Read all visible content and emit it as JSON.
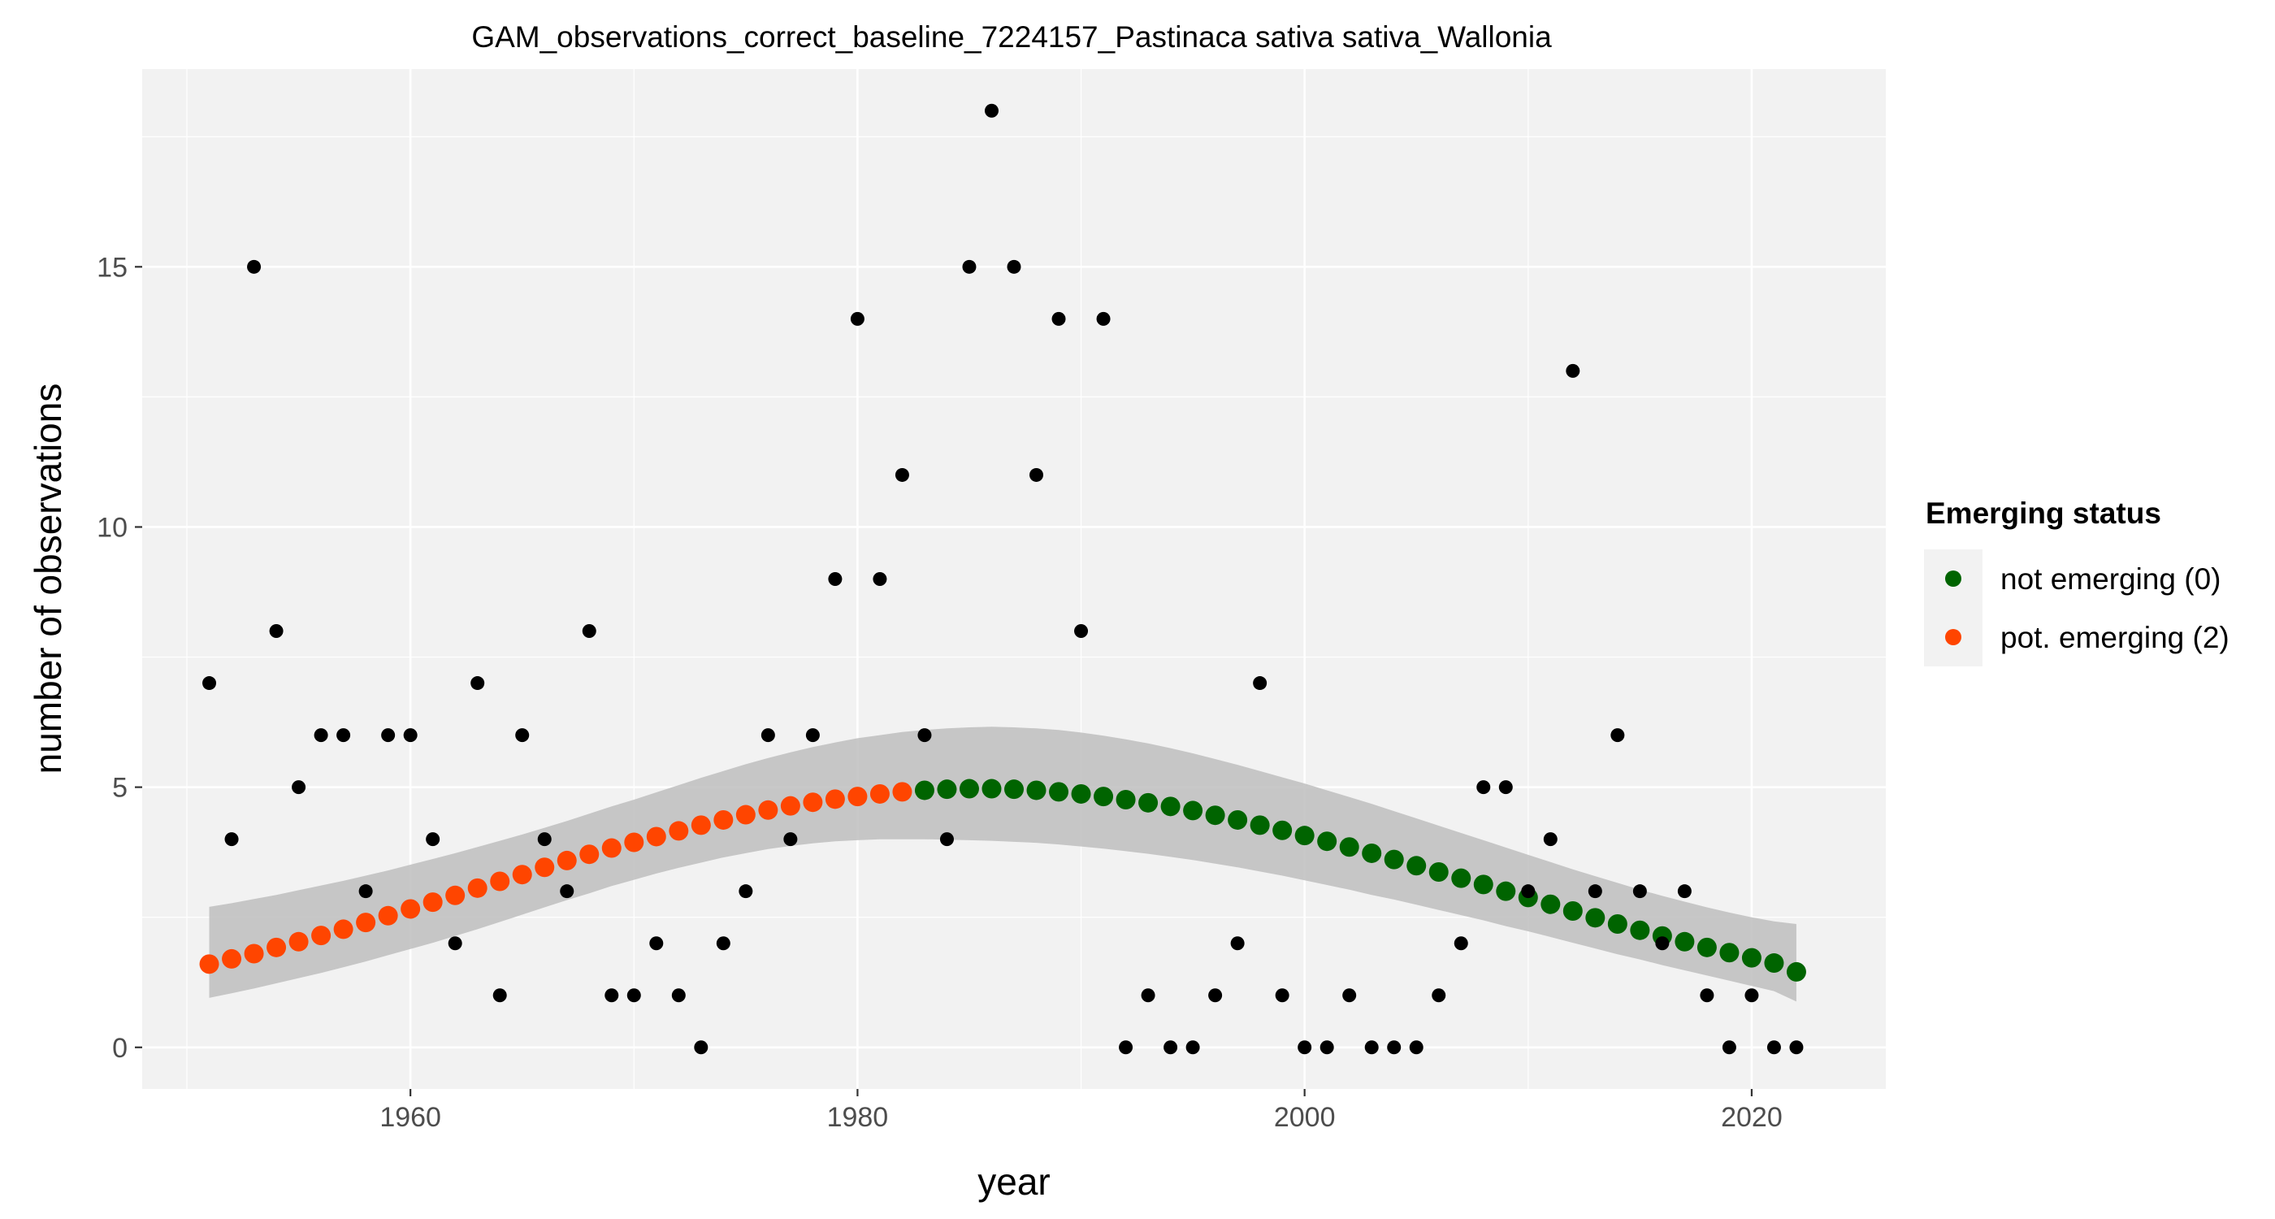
{
  "chart_data": {
    "type": "scatter",
    "title": "GAM_observations_correct_baseline_7224157_Pastinaca sativa sativa_Wallonia",
    "xlabel": "year",
    "ylabel": "number of observations",
    "xlim": [
      1948,
      2026
    ],
    "ylim": [
      -0.8,
      18.8
    ],
    "x_ticks": [
      1960,
      1980,
      2000,
      2020
    ],
    "y_ticks": [
      0,
      5,
      10,
      15
    ],
    "grid": true,
    "legend": {
      "title": "Emerging status",
      "position": "right",
      "items": [
        {
          "label": "not emerging (0)",
          "color": "#006400"
        },
        {
          "label": "pot. emerging (2)",
          "color": "#FF4500"
        }
      ]
    },
    "colors": {
      "panel_background": "#f2f2f2",
      "grid": "#ffffff",
      "observed_points": "#000000",
      "confidence_band": "#bebebe"
    },
    "observed": {
      "name": "",
      "x": [
        1951,
        1952,
        1953,
        1954,
        1955,
        1956,
        1957,
        1958,
        1959,
        1960,
        1961,
        1962,
        1963,
        1964,
        1965,
        1966,
        1967,
        1968,
        1969,
        1970,
        1971,
        1972,
        1973,
        1974,
        1975,
        1976,
        1977,
        1978,
        1979,
        1980,
        1981,
        1982,
        1983,
        1984,
        1985,
        1986,
        1987,
        1988,
        1989,
        1990,
        1991,
        1992,
        1993,
        1994,
        1995,
        1996,
        1997,
        1998,
        1999,
        2000,
        2001,
        2002,
        2003,
        2004,
        2005,
        2006,
        2007,
        2008,
        2009,
        2010,
        2011,
        2012,
        2013,
        2014,
        2015,
        2016,
        2017,
        2018,
        2019,
        2020,
        2021,
        2022
      ],
      "y": [
        7,
        4,
        15,
        8,
        5,
        6,
        6,
        3,
        6,
        6,
        4,
        2,
        7,
        1,
        6,
        4,
        3,
        8,
        1,
        1,
        2,
        1,
        0,
        2,
        3,
        6,
        4,
        6,
        9,
        14,
        9,
        11,
        6,
        4,
        15,
        18,
        15,
        11,
        14,
        8,
        14,
        0,
        1,
        0,
        0,
        1,
        2,
        7,
        1,
        0,
        0,
        1,
        0,
        0,
        0,
        1,
        2,
        5,
        5,
        3,
        4,
        13,
        3,
        6,
        3,
        2,
        3,
        1,
        0,
        1,
        0,
        0
      ]
    },
    "fitted": {
      "x": [
        1951,
        1952,
        1953,
        1954,
        1955,
        1956,
        1957,
        1958,
        1959,
        1960,
        1961,
        1962,
        1963,
        1964,
        1965,
        1966,
        1967,
        1968,
        1969,
        1970,
        1971,
        1972,
        1973,
        1974,
        1975,
        1976,
        1977,
        1978,
        1979,
        1980,
        1981,
        1982,
        1983,
        1984,
        1985,
        1986,
        1987,
        1988,
        1989,
        1990,
        1991,
        1992,
        1993,
        1994,
        1995,
        1996,
        1997,
        1998,
        1999,
        2000,
        2001,
        2002,
        2003,
        2004,
        2005,
        2006,
        2007,
        2008,
        2009,
        2010,
        2011,
        2012,
        2013,
        2014,
        2015,
        2016,
        2017,
        2018,
        2019,
        2020,
        2021,
        2022
      ],
      "y": [
        1.6,
        1.7,
        1.8,
        1.92,
        2.03,
        2.15,
        2.27,
        2.4,
        2.53,
        2.66,
        2.79,
        2.92,
        3.06,
        3.19,
        3.32,
        3.46,
        3.59,
        3.71,
        3.83,
        3.94,
        4.05,
        4.16,
        4.27,
        4.37,
        4.47,
        4.56,
        4.64,
        4.71,
        4.77,
        4.82,
        4.87,
        4.91,
        4.94,
        4.96,
        4.97,
        4.97,
        4.96,
        4.94,
        4.91,
        4.87,
        4.82,
        4.76,
        4.7,
        4.63,
        4.55,
        4.46,
        4.37,
        4.27,
        4.17,
        4.07,
        3.96,
        3.85,
        3.73,
        3.61,
        3.49,
        3.37,
        3.25,
        3.13,
        3.0,
        2.88,
        2.75,
        2.62,
        2.49,
        2.37,
        2.25,
        2.14,
        2.03,
        1.92,
        1.82,
        1.72,
        1.62,
        1.45
      ],
      "lower": [
        0.95,
        1.04,
        1.13,
        1.23,
        1.33,
        1.43,
        1.54,
        1.65,
        1.77,
        1.89,
        2.01,
        2.14,
        2.27,
        2.41,
        2.55,
        2.69,
        2.83,
        2.96,
        3.1,
        3.22,
        3.34,
        3.45,
        3.55,
        3.65,
        3.73,
        3.81,
        3.87,
        3.92,
        3.96,
        3.98,
        4.0,
        4.0,
        4.0,
        3.99,
        3.98,
        3.97,
        3.95,
        3.93,
        3.9,
        3.86,
        3.82,
        3.77,
        3.72,
        3.66,
        3.6,
        3.53,
        3.46,
        3.38,
        3.3,
        3.21,
        3.12,
        3.03,
        2.93,
        2.84,
        2.74,
        2.64,
        2.54,
        2.44,
        2.33,
        2.23,
        2.12,
        2.01,
        1.9,
        1.79,
        1.69,
        1.58,
        1.48,
        1.38,
        1.28,
        1.18,
        1.08,
        0.88
      ],
      "upper": [
        2.7,
        2.77,
        2.85,
        2.93,
        3.02,
        3.11,
        3.2,
        3.3,
        3.4,
        3.51,
        3.62,
        3.73,
        3.85,
        3.97,
        4.09,
        4.22,
        4.35,
        4.49,
        4.63,
        4.76,
        4.9,
        5.04,
        5.18,
        5.31,
        5.44,
        5.56,
        5.67,
        5.77,
        5.86,
        5.94,
        6.0,
        6.06,
        6.1,
        6.13,
        6.15,
        6.16,
        6.15,
        6.13,
        6.1,
        6.05,
        5.99,
        5.92,
        5.84,
        5.75,
        5.65,
        5.54,
        5.43,
        5.31,
        5.19,
        5.07,
        4.94,
        4.81,
        4.68,
        4.54,
        4.4,
        4.26,
        4.12,
        3.98,
        3.84,
        3.7,
        3.56,
        3.42,
        3.29,
        3.16,
        3.03,
        2.91,
        2.8,
        2.69,
        2.59,
        2.5,
        2.42,
        2.37
      ],
      "status": [
        2,
        2,
        2,
        2,
        2,
        2,
        2,
        2,
        2,
        2,
        2,
        2,
        2,
        2,
        2,
        2,
        2,
        2,
        2,
        2,
        2,
        2,
        2,
        2,
        2,
        2,
        2,
        2,
        2,
        2,
        2,
        2,
        0,
        0,
        0,
        0,
        0,
        0,
        0,
        0,
        0,
        0,
        0,
        0,
        0,
        0,
        0,
        0,
        0,
        0,
        0,
        0,
        0,
        0,
        0,
        0,
        0,
        0,
        0,
        0,
        0,
        0,
        0,
        0,
        0,
        0,
        0,
        0,
        0,
        0,
        0,
        0
      ]
    }
  }
}
